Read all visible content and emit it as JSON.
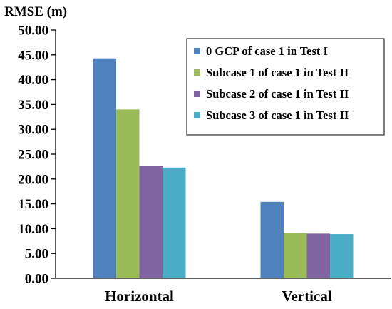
{
  "chart_data": {
    "type": "bar",
    "title": "",
    "ylabel": "RMSE (m)",
    "xlabel": "",
    "ylim": [
      0,
      50
    ],
    "ytick_step": 5,
    "ytick_labels": [
      "0.00",
      "5.00",
      "10.00",
      "15.00",
      "20.00",
      "25.00",
      "30.00",
      "35.00",
      "40.00",
      "45.00",
      "50.00"
    ],
    "categories": [
      "Horizontal",
      "Vertical"
    ],
    "grid": false,
    "legend_position": "top-right",
    "series": [
      {
        "name": "0 GCP of case 1 in Test I",
        "color": "#4F81BD",
        "values": [
          44.3,
          15.4
        ]
      },
      {
        "name": "Subcase 1 of case 1 in Test II",
        "color": "#9BBB59",
        "values": [
          34.0,
          9.1
        ]
      },
      {
        "name": "Subcase 2 of case 1 in Test II",
        "color": "#8064A2",
        "values": [
          22.7,
          9.0
        ]
      },
      {
        "name": "Subcase 3 of case 1 in Test II",
        "color": "#4BACC6",
        "values": [
          22.3,
          8.9
        ]
      }
    ]
  }
}
